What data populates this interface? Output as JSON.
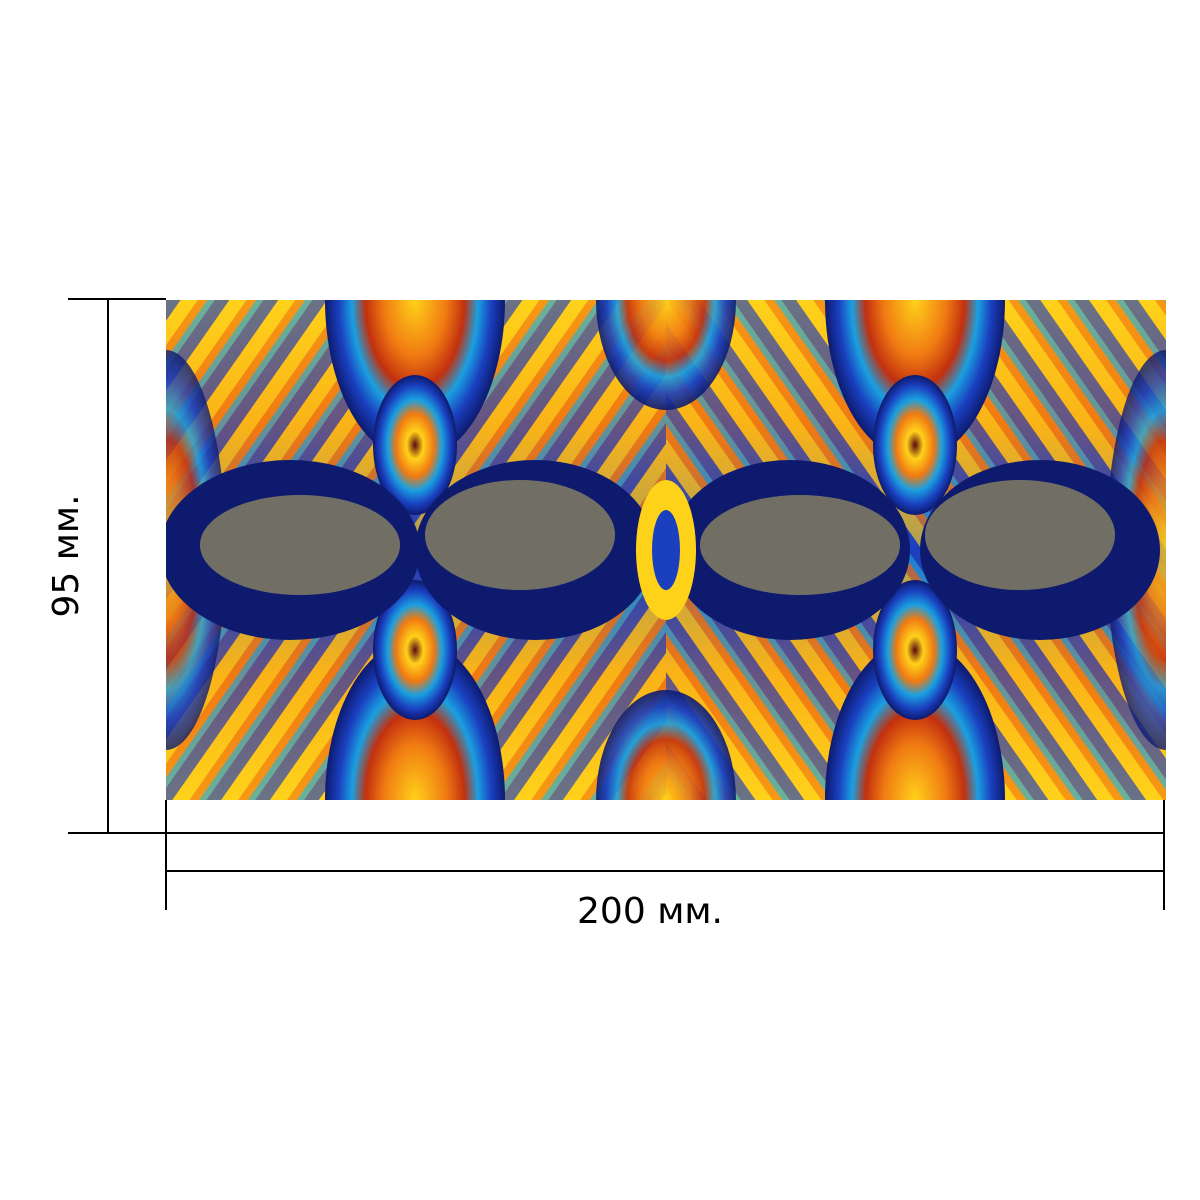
{
  "dimensions": {
    "width_label": "200 мм.",
    "height_label": "95 мм."
  },
  "artwork": {
    "description_icon": "fractal-pattern-image",
    "palette": {
      "blue": "#1a3fbf",
      "navy": "#0d1a6e",
      "yellow": "#ffd21a",
      "orange": "#f07a12",
      "red": "#c2300f",
      "cyan": "#1aa0e0",
      "green": "#3a8a2a",
      "maroon": "#5a0a10",
      "noise_gray": "#7a7560"
    }
  }
}
